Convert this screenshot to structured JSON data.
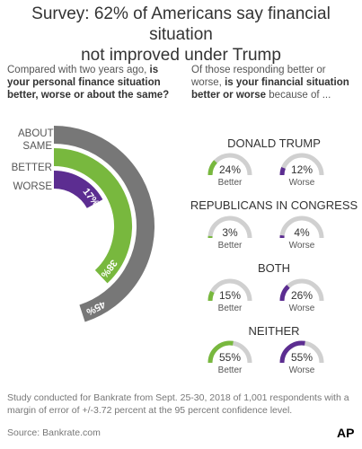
{
  "title_line1": "Survey: 62% of Americans say financial situation",
  "title_line2": "not improved under Trump",
  "left_question": {
    "prefix": "Compared with two years ago, ",
    "bold": "is your personal finance situation better, worse or about the same?"
  },
  "right_question": {
    "prefix": "Of those responding better or worse, ",
    "bold": "is your financial situation better or worse",
    "suffix": " because of ..."
  },
  "colors": {
    "about_same": "#777777",
    "better": "#78b83e",
    "worse": "#5c2d91",
    "track": "#d0d0d0"
  },
  "chart_data": [
    {
      "type": "pie",
      "title": "",
      "categories": [
        "ABOUT SAME",
        "BETTER",
        "WORSE"
      ],
      "values": [
        45,
        38,
        17
      ],
      "labels": [
        "45%",
        "38%",
        "17%"
      ]
    },
    {
      "type": "bar",
      "groups": [
        {
          "name": "DONALD TRUMP",
          "better": 24,
          "worse": 12,
          "better_label": "24%",
          "worse_label": "12%"
        },
        {
          "name": "REPUBLICANS IN CONGRESS",
          "better": 3,
          "worse": 4,
          "better_label": "3%",
          "worse_label": "4%"
        },
        {
          "name": "BOTH",
          "better": 15,
          "worse": 26,
          "better_label": "15%",
          "worse_label": "26%"
        },
        {
          "name": "NEITHER",
          "better": 55,
          "worse": 55,
          "better_label": "55%",
          "worse_label": "55%"
        }
      ],
      "better_text": "Better",
      "worse_text": "Worse"
    }
  ],
  "footnote": "Study conducted for Bankrate from Sept. 25-30, 2018 of 1,001 respondents with a margin of error of +/-3.72 percent at the 95 percent confidence level.",
  "source": "Source: Bankrate.com",
  "logo": "AP"
}
